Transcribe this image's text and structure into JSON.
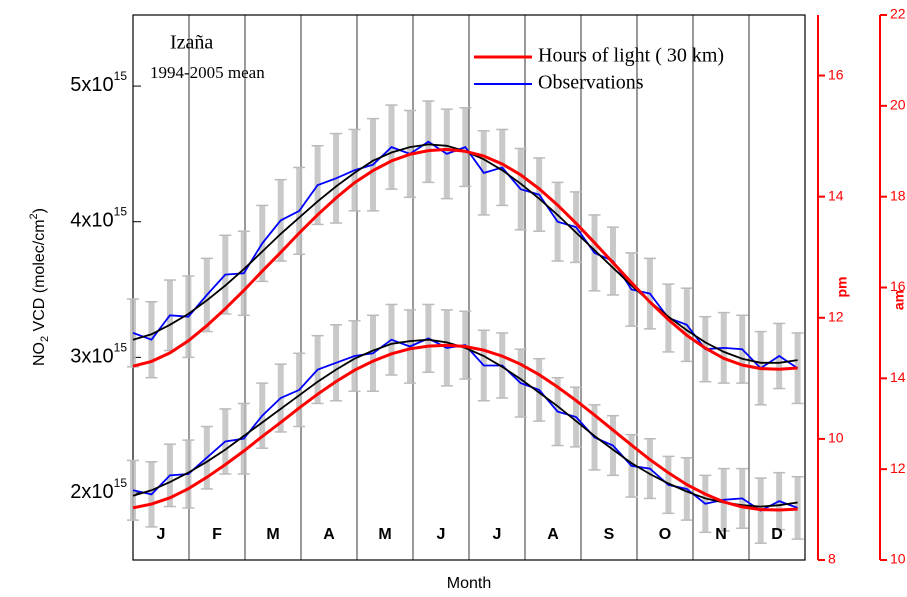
{
  "chart_data": {
    "type": "line",
    "annotations": [
      "Izaña",
      "1994-2005 mean"
    ],
    "xlabel": "Month",
    "ylabel": [
      "NO",
      "2",
      " VCD (molec/cm",
      "2",
      ")"
    ],
    "y2label": "pm",
    "y3label": "am",
    "categories": [
      "J",
      "F",
      "M",
      "A",
      "M",
      "J",
      "J",
      "A",
      "S",
      "O",
      "N",
      "D"
    ],
    "xlim": [
      1,
      365
    ],
    "ylim": [
      1506000000000000.0,
      5524000000000000.0
    ],
    "yticks": [
      {
        "value": 2000000000000000.0,
        "label": "2x10",
        "label_sup": "15"
      },
      {
        "value": 3000000000000000.0,
        "label": "3x10",
        "label_sup": "15"
      },
      {
        "value": 4000000000000000.0,
        "label": "4x10",
        "label_sup": "15"
      },
      {
        "value": 5000000000000000.0,
        "label": "5x10",
        "label_sup": "15"
      }
    ],
    "y2lim": [
      8,
      17
    ],
    "y2ticks": [
      8,
      10,
      12,
      14,
      16
    ],
    "y3lim": [
      10,
      22
    ],
    "y3ticks": [
      10,
      12,
      14,
      16,
      18,
      20,
      22
    ],
    "x": [
      1,
      11,
      21,
      31,
      41,
      51,
      61,
      71,
      81,
      91,
      101,
      111,
      121,
      131,
      141,
      151,
      161,
      171,
      181,
      191,
      201,
      211,
      221,
      231,
      241,
      251,
      261,
      271,
      281,
      291,
      301,
      311,
      321,
      331,
      341,
      351,
      361
    ],
    "series": [
      {
        "name": "Observations",
        "color": "#0000ff",
        "error_color": "#bbbbbb",
        "values": [
          3180000000000000.0,
          3130000000000000.0,
          3310000000000000.0,
          3300000000000000.0,
          3460000000000000.0,
          3610000000000000.0,
          3620000000000000.0,
          3840000000000000.0,
          4010000000000000.0,
          4080000000000000.0,
          4270000000000000.0,
          4320000000000000.0,
          4380000000000000.0,
          4420000000000000.0,
          4550000000000000.0,
          4500000000000000.0,
          4590000000000000.0,
          4500000000000000.0,
          4550000000000000.0,
          4360000000000000.0,
          4400000000000000.0,
          4240000000000000.0,
          4200000000000000.0,
          4000000000000000.0,
          3960000000000000.0,
          3770000000000000.0,
          3710000000000000.0,
          3500000000000000.0,
          3470000000000000.0,
          3290000000000000.0,
          3240000000000000.0,
          3060000000000000.0,
          3070000000000000.0,
          3060000000000000.0,
          2920000000000000.0,
          3010000000000000.0,
          2920000000000000.0
        ],
        "errors": [
          250000000000000.0,
          280000000000000.0,
          260000000000000.0,
          300000000000000.0,
          270000000000000.0,
          290000000000000.0,
          310000000000000.0,
          280000000000000.0,
          300000000000000.0,
          320000000000000.0,
          290000000000000.0,
          330000000000000.0,
          300000000000000.0,
          340000000000000.0,
          310000000000000.0,
          320000000000000.0,
          300000000000000.0,
          330000000000000.0,
          290000000000000.0,
          310000000000000.0,
          280000000000000.0,
          300000000000000.0,
          270000000000000.0,
          290000000000000.0,
          260000000000000.0,
          280000000000000.0,
          250000000000000.0,
          270000000000000.0,
          260000000000000.0,
          250000000000000.0,
          270000000000000.0,
          240000000000000.0,
          260000000000000.0,
          250000000000000.0,
          270000000000000.0,
          240000000000000.0,
          260000000000000.0
        ]
      },
      {
        "color": "#0000ff",
        "error_color": "#bbbbbb",
        "values": [
          2020000000000000.0,
          1990000000000000.0,
          2130000000000000.0,
          2140000000000000.0,
          2260000000000000.0,
          2380000000000000.0,
          2400000000000000.0,
          2570000000000000.0,
          2700000000000000.0,
          2760000000000000.0,
          2910000000000000.0,
          2960000000000000.0,
          3010000000000000.0,
          3030000000000000.0,
          3130000000000000.0,
          3080000000000000.0,
          3140000000000000.0,
          3070000000000000.0,
          3090000000000000.0,
          2940000000000000.0,
          2940000000000000.0,
          2810000000000000.0,
          2760000000000000.0,
          2600000000000000.0,
          2560000000000000.0,
          2410000000000000.0,
          2350000000000000.0,
          2200000000000000.0,
          2180000000000000.0,
          2060000000000000.0,
          2030000000000000.0,
          1920000000000000.0,
          1950000000000000.0,
          1960000000000000.0,
          1870000000000000.0,
          1940000000000000.0,
          1890000000000000.0
        ],
        "errors": [
          220000000000000.0,
          240000000000000.0,
          230000000000000.0,
          250000000000000.0,
          230000000000000.0,
          240000000000000.0,
          260000000000000.0,
          240000000000000.0,
          250000000000000.0,
          270000000000000.0,
          250000000000000.0,
          280000000000000.0,
          260000000000000.0,
          280000000000000.0,
          260000000000000.0,
          270000000000000.0,
          250000000000000.0,
          280000000000000.0,
          250000000000000.0,
          260000000000000.0,
          240000000000000.0,
          250000000000000.0,
          230000000000000.0,
          250000000000000.0,
          220000000000000.0,
          240000000000000.0,
          220000000000000.0,
          230000000000000.0,
          220000000000000.0,
          210000000000000.0,
          230000000000000.0,
          210000000000000.0,
          230000000000000.0,
          220000000000000.0,
          240000000000000.0,
          210000000000000.0,
          230000000000000.0
        ]
      },
      {
        "color": "#000000",
        "values": [
          3130000000000000.0,
          3170000000000000.0,
          3240000000000000.0,
          3320000000000000.0,
          3420000000000000.0,
          3530000000000000.0,
          3650000000000000.0,
          3780000000000000.0,
          3910000000000000.0,
          4030000000000000.0,
          4150000000000000.0,
          4260000000000000.0,
          4360000000000000.0,
          4450000000000000.0,
          4510000000000000.0,
          4550000000000000.0,
          4570000000000000.0,
          4560000000000000.0,
          4520000000000000.0,
          4460000000000000.0,
          4380000000000000.0,
          4280000000000000.0,
          4170000000000000.0,
          4050000000000000.0,
          3920000000000000.0,
          3790000000000000.0,
          3660000000000000.0,
          3530000000000000.0,
          3410000000000000.0,
          3300000000000000.0,
          3200000000000000.0,
          3110000000000000.0,
          3040000000000000.0,
          2990000000000000.0,
          2960000000000000.0,
          2960000000000000.0,
          2980000000000000.0
        ]
      },
      {
        "color": "#000000",
        "values": [
          1980000000000000.0,
          2020000000000000.0,
          2080000000000000.0,
          2150000000000000.0,
          2230000000000000.0,
          2320000000000000.0,
          2420000000000000.0,
          2520000000000000.0,
          2620000000000000.0,
          2720000000000000.0,
          2820000000000000.0,
          2910000000000000.0,
          2990000000000000.0,
          3050000000000000.0,
          3100000000000000.0,
          3120000000000000.0,
          3130000000000000.0,
          3110000000000000.0,
          3070000000000000.0,
          3010000000000000.0,
          2930000000000000.0,
          2840000000000000.0,
          2740000000000000.0,
          2640000000000000.0,
          2530000000000000.0,
          2420000000000000.0,
          2320000000000000.0,
          2220000000000000.0,
          2140000000000000.0,
          2070000000000000.0,
          2010000000000000.0,
          1960000000000000.0,
          1930000000000000.0,
          1910000000000000.0,
          1900000000000000.0,
          1910000000000000.0,
          1930000000000000.0
        ]
      },
      {
        "name": "Hours of light ( 30 km)",
        "color": "#ff0000",
        "axis": "y2",
        "values": [
          11.2,
          11.28,
          11.42,
          11.62,
          11.87,
          12.15,
          12.45,
          12.77,
          13.08,
          13.4,
          13.7,
          13.98,
          14.23,
          14.43,
          14.59,
          14.7,
          14.76,
          14.78,
          14.75,
          14.67,
          14.54,
          14.36,
          14.13,
          13.86,
          13.56,
          13.24,
          12.91,
          12.58,
          12.26,
          11.97,
          11.71,
          11.5,
          11.33,
          11.22,
          11.16,
          11.15,
          11.17
        ]
      },
      {
        "color": "#ff0000",
        "axis": "y3",
        "values": [
          11.15,
          11.23,
          11.37,
          11.57,
          11.82,
          12.1,
          12.4,
          12.72,
          13.03,
          13.35,
          13.65,
          13.93,
          14.18,
          14.38,
          14.54,
          14.65,
          14.71,
          14.73,
          14.7,
          14.62,
          14.49,
          14.31,
          14.08,
          13.81,
          13.51,
          13.19,
          12.86,
          12.53,
          12.21,
          11.92,
          11.66,
          11.45,
          11.28,
          11.17,
          11.11,
          11.1,
          11.12
        ]
      }
    ]
  }
}
